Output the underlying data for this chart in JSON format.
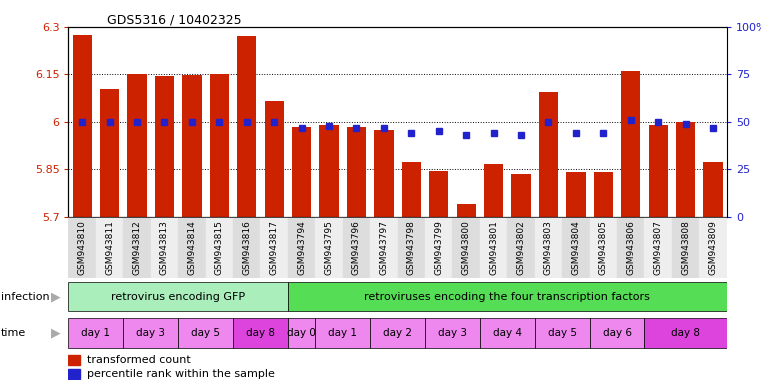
{
  "title": "GDS5316 / 10402325",
  "samples": [
    "GSM943810",
    "GSM943811",
    "GSM943812",
    "GSM943813",
    "GSM943814",
    "GSM943815",
    "GSM943816",
    "GSM943817",
    "GSM943794",
    "GSM943795",
    "GSM943796",
    "GSM943797",
    "GSM943798",
    "GSM943799",
    "GSM943800",
    "GSM943801",
    "GSM943802",
    "GSM943803",
    "GSM943804",
    "GSM943805",
    "GSM943806",
    "GSM943807",
    "GSM943808",
    "GSM943809"
  ],
  "red_values": [
    6.275,
    6.105,
    6.15,
    6.145,
    6.148,
    6.15,
    6.27,
    6.065,
    5.985,
    5.99,
    5.985,
    5.975,
    5.873,
    5.845,
    5.74,
    5.868,
    5.835,
    6.095,
    5.842,
    5.843,
    6.16,
    5.99,
    6.0,
    5.875
  ],
  "blue_values": [
    50,
    50,
    50,
    50,
    50,
    50,
    50,
    50,
    47,
    48,
    47,
    47,
    44,
    45,
    43,
    44,
    43,
    50,
    44,
    44,
    51,
    50,
    49,
    47
  ],
  "ylim_left": [
    5.7,
    6.3
  ],
  "ylim_right": [
    0,
    100
  ],
  "yticks_left": [
    5.7,
    5.85,
    6.0,
    6.15,
    6.3
  ],
  "yticks_right": [
    0,
    25,
    50,
    75,
    100
  ],
  "ytick_labels_left": [
    "5.7",
    "5.85",
    "6",
    "6.15",
    "6.3"
  ],
  "ytick_labels_right": [
    "0",
    "25",
    "50",
    "75",
    "100%"
  ],
  "bar_color": "#cc2200",
  "dot_color": "#2222cc",
  "bar_width": 0.7,
  "infection_groups": [
    {
      "label": "retrovirus encoding GFP",
      "start": 0,
      "end": 7,
      "color": "#aaeebb"
    },
    {
      "label": "retroviruses encoding the four transcription factors",
      "start": 8,
      "end": 23,
      "color": "#55dd55"
    }
  ],
  "time_groups": [
    {
      "label": "day 1",
      "start": 0,
      "end": 1,
      "color": "#ee88ee"
    },
    {
      "label": "day 3",
      "start": 2,
      "end": 3,
      "color": "#ee88ee"
    },
    {
      "label": "day 5",
      "start": 4,
      "end": 5,
      "color": "#ee88ee"
    },
    {
      "label": "day 8",
      "start": 6,
      "end": 7,
      "color": "#dd44dd"
    },
    {
      "label": "day 0",
      "start": 8,
      "end": 8,
      "color": "#ee88ee"
    },
    {
      "label": "day 1",
      "start": 9,
      "end": 10,
      "color": "#ee88ee"
    },
    {
      "label": "day 2",
      "start": 11,
      "end": 12,
      "color": "#ee88ee"
    },
    {
      "label": "day 3",
      "start": 13,
      "end": 14,
      "color": "#ee88ee"
    },
    {
      "label": "day 4",
      "start": 15,
      "end": 16,
      "color": "#ee88ee"
    },
    {
      "label": "day 5",
      "start": 17,
      "end": 18,
      "color": "#ee88ee"
    },
    {
      "label": "day 6",
      "start": 19,
      "end": 20,
      "color": "#ee88ee"
    },
    {
      "label": "day 8",
      "start": 21,
      "end": 23,
      "color": "#dd44dd"
    }
  ],
  "legend_items": [
    {
      "label": "transformed count",
      "color": "#cc2200"
    },
    {
      "label": "percentile rank within the sample",
      "color": "#2222cc"
    }
  ],
  "grid_color": "#000000",
  "tick_color_left": "#cc2200",
  "tick_color_right": "#2222cc",
  "label_left": "infection",
  "label_time": "time",
  "arrow_color": "#aaaaaa"
}
